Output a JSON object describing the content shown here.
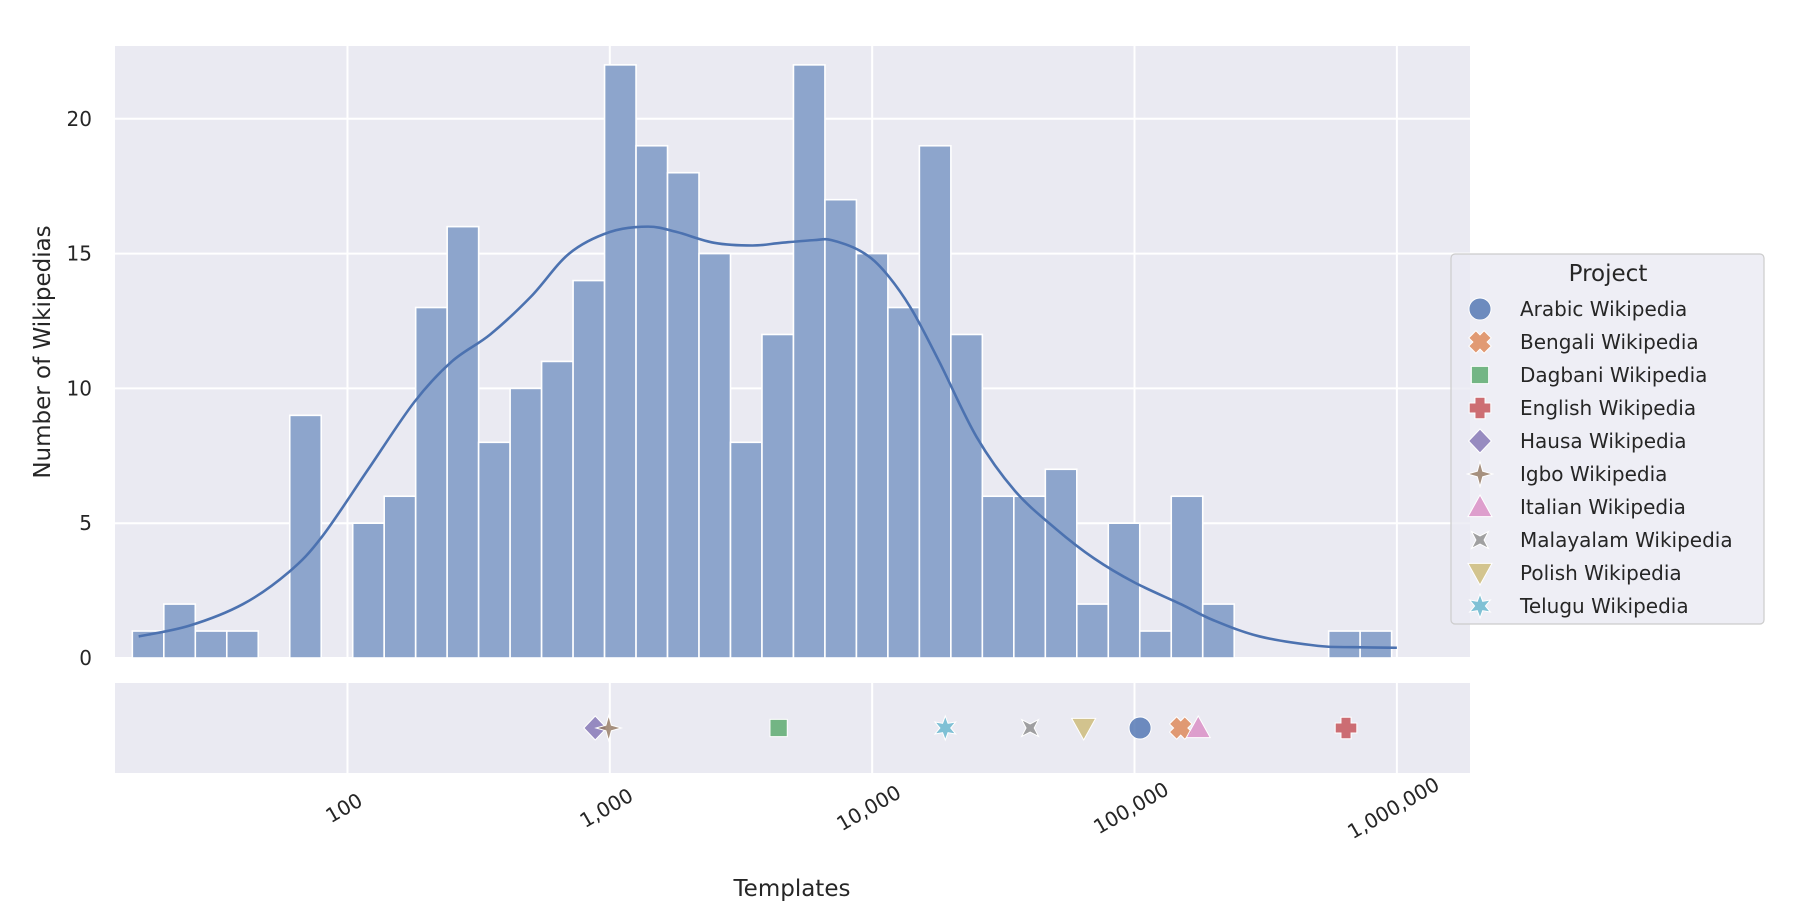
{
  "chart_data": {
    "type": "bar",
    "title": "",
    "xlabel": "Templates",
    "ylabel": "Number of Wikipedias",
    "xscale": "log",
    "xlim": [
      13,
      1900000
    ],
    "ylim": [
      0,
      22.7
    ],
    "grid": true,
    "y_ticks": [
      0,
      5,
      10,
      15,
      20
    ],
    "x_ticks": [
      {
        "value": 100,
        "label": "100"
      },
      {
        "value": 1000,
        "label": "1,000"
      },
      {
        "value": 10000,
        "label": "10,000"
      },
      {
        "value": 100000,
        "label": "100,000"
      },
      {
        "value": 1000000,
        "label": "1,000,000"
      }
    ],
    "histogram": {
      "log10_start": 1.18,
      "log10_bin_width": 0.12,
      "counts": [
        1,
        2,
        1,
        1,
        0,
        9,
        0,
        5,
        6,
        13,
        16,
        8,
        10,
        11,
        14,
        22,
        19,
        18,
        15,
        8,
        12,
        22,
        17,
        15,
        13,
        19,
        12,
        6,
        6,
        7,
        2,
        5,
        1,
        6,
        2,
        0,
        0,
        0,
        1,
        1
      ]
    },
    "kde": {
      "x": [
        16,
        25,
        40,
        60,
        80,
        120,
        180,
        250,
        350,
        500,
        700,
        1000,
        1400,
        1800,
        2500,
        3500,
        4500,
        6000,
        7000,
        9000,
        11000,
        14000,
        18000,
        25000,
        35000,
        50000,
        70000,
        100000,
        150000,
        200000,
        300000,
        500000,
        700000,
        1000000
      ],
      "y": [
        0.8,
        1.2,
        2.0,
        3.2,
        4.5,
        7.0,
        9.5,
        11.0,
        12.0,
        13.4,
        15.0,
        15.8,
        16.0,
        15.8,
        15.4,
        15.3,
        15.4,
        15.5,
        15.5,
        15.1,
        14.4,
        13.0,
        11.0,
        8.2,
        6.2,
        4.8,
        3.7,
        2.8,
        2.0,
        1.4,
        0.8,
        0.45,
        0.4,
        0.38
      ]
    },
    "rug": [
      {
        "name": "Arabic Wikipedia",
        "value": 105000,
        "marker": "circle",
        "color": "#4c72b0"
      },
      {
        "name": "Bengali Wikipedia",
        "value": 150000,
        "marker": "x",
        "color": "#dd8452"
      },
      {
        "name": "Dagbani Wikipedia",
        "value": 4400,
        "marker": "square",
        "color": "#55a868"
      },
      {
        "name": "English Wikipedia",
        "value": 640000,
        "marker": "plus",
        "color": "#c44e52"
      },
      {
        "name": "Hausa Wikipedia",
        "value": 880,
        "marker": "diamond",
        "color": "#8172b3"
      },
      {
        "name": "Igbo Wikipedia",
        "value": 990,
        "marker": "star4",
        "color": "#937860"
      },
      {
        "name": "Italian Wikipedia",
        "value": 175000,
        "marker": "triangle-up",
        "color": "#da8bc3"
      },
      {
        "name": "Malayalam Wikipedia",
        "value": 40000,
        "marker": "star4-x",
        "color": "#8c8c8c"
      },
      {
        "name": "Polish Wikipedia",
        "value": 64000,
        "marker": "triangle-down",
        "color": "#ccb974"
      },
      {
        "name": "Telugu Wikipedia",
        "value": 19000,
        "marker": "star6",
        "color": "#64b5cd"
      }
    ],
    "legend": {
      "title": "Project",
      "placement": "right",
      "entries": [
        "Arabic Wikipedia",
        "Bengali Wikipedia",
        "Dagbani Wikipedia",
        "English Wikipedia",
        "Hausa Wikipedia",
        "Igbo Wikipedia",
        "Italian Wikipedia",
        "Malayalam Wikipedia",
        "Polish Wikipedia",
        "Telugu Wikipedia"
      ]
    },
    "colors": {
      "bar_fill": "#8da5cc",
      "kde_line": "#4c72b0",
      "panel_bg": "#eaeaf2",
      "grid": "#ffffff"
    }
  }
}
